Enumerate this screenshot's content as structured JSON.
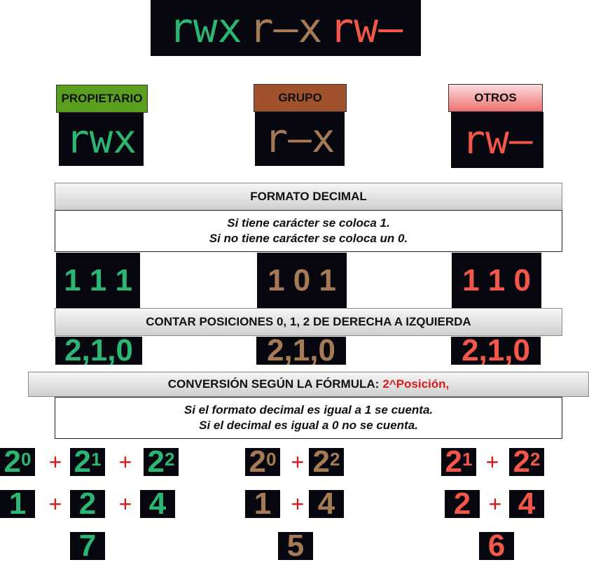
{
  "top_banner": {
    "owner": "rwx",
    "group": "r—x",
    "others": "rw—"
  },
  "categories": {
    "owner": {
      "label": "PROPIETARIO",
      "perm": "rwx",
      "color": "#5aa01e"
    },
    "group": {
      "label": "GRUPO",
      "perm": "r—x",
      "color": "#a0522d"
    },
    "others": {
      "label": "OTROS",
      "perm": "rw—",
      "color": "#f08080"
    }
  },
  "decimal_section": {
    "title": "FORMATO DECIMAL",
    "line1": "Si  tiene carácter se coloca 1.",
    "line2": "Si no tiene carácter se coloca un 0."
  },
  "binary": {
    "owner": "1 1 1",
    "group": "1 0 1",
    "others": "1 1 0"
  },
  "positions_section": {
    "title": "CONTAR POSICIONES 0, 1, 2 DE DERECHA A IZQUIERDA",
    "owner": "2,1,0",
    "group": "2,1,0",
    "others": "2,1,0"
  },
  "conversion_section": {
    "title": "CONVERSIÓN SEGÚN LA FÓRMULA:",
    "formula": "2^Posición,",
    "line1": "Si el formato decimal es igual a 1 se cuenta.",
    "line2": "Si el decimal es igual a 0 no se cuenta."
  },
  "powers": {
    "owner": [
      {
        "base": "2",
        "exp": "0"
      },
      {
        "base": "2",
        "exp": "1"
      },
      {
        "base": "2",
        "exp": "2"
      }
    ],
    "group": [
      {
        "base": "2",
        "exp": "0"
      },
      {
        "base": "2",
        "exp": "2"
      }
    ],
    "others": [
      {
        "base": "2",
        "exp": "1"
      },
      {
        "base": "2",
        "exp": "2"
      }
    ]
  },
  "values": {
    "owner": [
      "1",
      "2",
      "4"
    ],
    "group": [
      "1",
      "4"
    ],
    "others": [
      "2",
      "4"
    ]
  },
  "plus_sign": "+",
  "totals": {
    "owner": "7",
    "group": "5",
    "others": "6"
  },
  "colors": {
    "green": "#2bb673",
    "brown": "#a67a55",
    "red": "#f2574a",
    "plus": "#d91a1a"
  }
}
